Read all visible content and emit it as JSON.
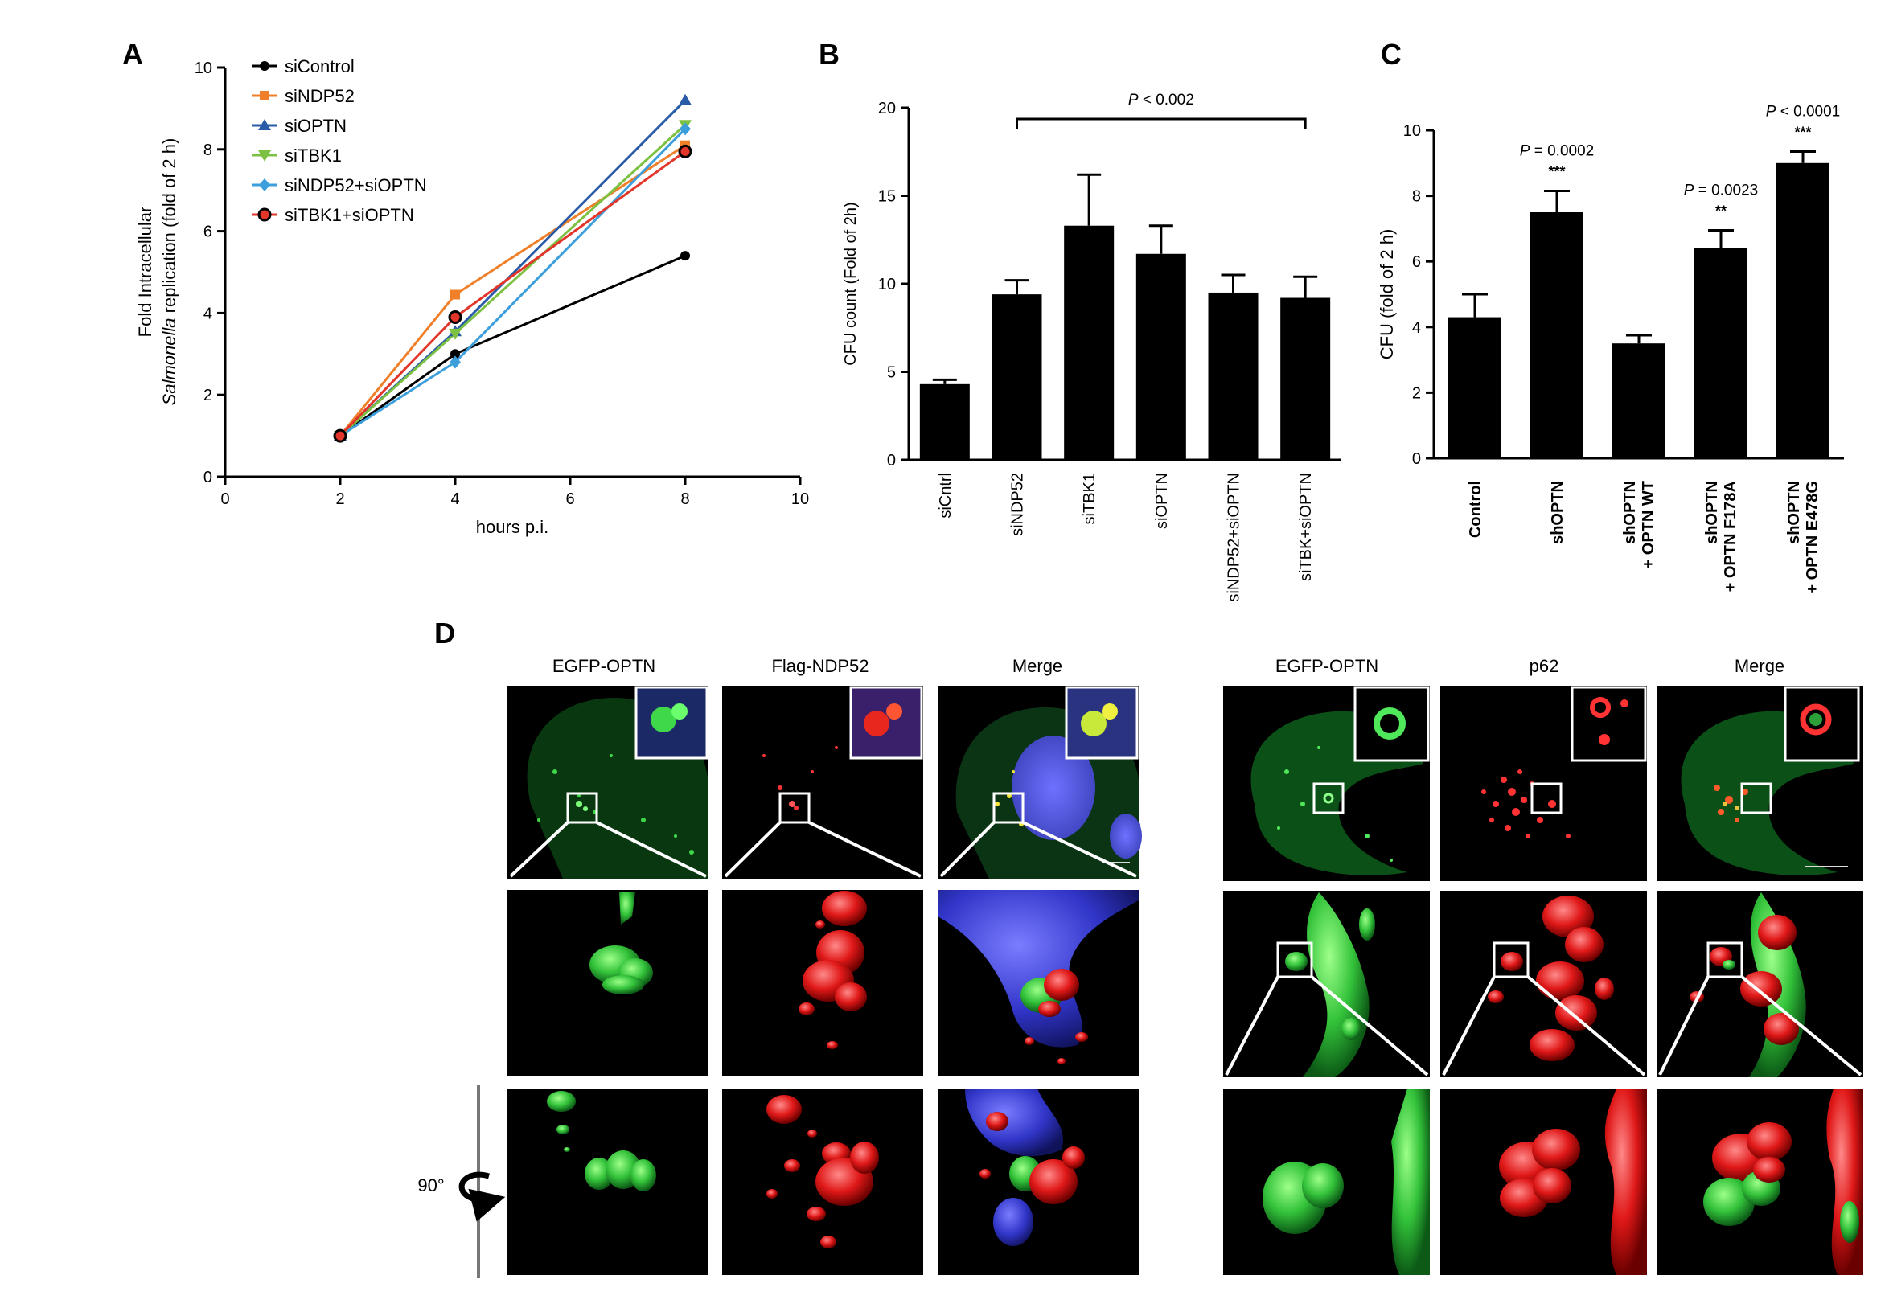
{
  "panel_labels": {
    "A": "A",
    "B": "B",
    "C": "C",
    "D": "D"
  },
  "chart_data": [
    {
      "id": "A",
      "type": "line",
      "xlabel": "hours p.i.",
      "ylabel_line1": "Fold Intracellular",
      "ylabel_line2_italic": "Salmonella",
      "ylabel_line2_rest": " replication (fold of 2 h)",
      "xlim": [
        0,
        10
      ],
      "ylim": [
        0,
        10
      ],
      "xticks": [
        "0",
        "2",
        "4",
        "6",
        "8",
        "10"
      ],
      "yticks": [
        "0",
        "2",
        "4",
        "6",
        "8",
        "10"
      ],
      "x": [
        2,
        4,
        8
      ],
      "legend_position": "top-left",
      "series": [
        {
          "name": "siControl",
          "values": [
            1.0,
            3.0,
            5.4
          ],
          "color": "#000000",
          "marker": "circle"
        },
        {
          "name": "siNDP52",
          "values": [
            1.0,
            4.45,
            8.1
          ],
          "color": "#f07f2a",
          "marker": "square"
        },
        {
          "name": "siOPTN",
          "values": [
            1.0,
            3.55,
            9.2
          ],
          "color": "#2a5ba8",
          "marker": "triangle-up"
        },
        {
          "name": "siTBK1",
          "values": [
            1.0,
            3.5,
            8.6
          ],
          "color": "#7cc142",
          "marker": "triangle-down"
        },
        {
          "name": "siNDP52+siOPTN",
          "values": [
            1.0,
            2.8,
            8.5
          ],
          "color": "#3c9fdb",
          "marker": "diamond"
        },
        {
          "name": "siTBK1+siOPTN",
          "values": [
            1.0,
            3.9,
            7.95
          ],
          "color": "#e2362a",
          "marker": "circle-ring"
        }
      ]
    },
    {
      "id": "B",
      "type": "bar",
      "ylabel": "CFU count (Fold of 2h)",
      "ylim": [
        0,
        20
      ],
      "yticks": [
        "0",
        "5",
        "10",
        "15",
        "20"
      ],
      "categories": [
        "siCntrl",
        "siNDP52",
        "siTBK1",
        "siOPTN",
        "siNDP52+siOPTN",
        "siTBK+siOPTN"
      ],
      "values": [
        4.3,
        9.4,
        13.3,
        11.7,
        9.5,
        9.2
      ],
      "errors": [
        0.25,
        0.8,
        2.9,
        1.6,
        1.0,
        1.2
      ],
      "annotation": {
        "italic": "P",
        "rest": " < 0.002",
        "from": 1,
        "to": 5
      }
    },
    {
      "id": "C",
      "type": "bar",
      "ylabel": "CFU  (fold of 2 h)",
      "ylim": [
        0,
        10
      ],
      "yticks": [
        "0",
        "2",
        "4",
        "6",
        "8",
        "10"
      ],
      "categories": [
        {
          "line1": "Control",
          "line2": ""
        },
        {
          "line1": "shOPTN",
          "line2": ""
        },
        {
          "line1": "shOPTN",
          "line2": "+ OPTN WT"
        },
        {
          "line1": "shOPTN",
          "line2": "+ OPTN F178A"
        },
        {
          "line1": "shOPTN",
          "line2": "+ OPTN E478G"
        }
      ],
      "values": [
        4.3,
        7.5,
        3.5,
        6.4,
        9.0
      ],
      "errors": [
        0.7,
        0.65,
        0.25,
        0.55,
        0.35
      ],
      "annotations": [
        {
          "index": 1,
          "p_italic": "P",
          "p_rest": " = 0.0002",
          "stars": "***"
        },
        {
          "index": 3,
          "p_italic": "P",
          "p_rest": " = 0.0023",
          "stars": "**"
        },
        {
          "index": 4,
          "p_italic": "P",
          "p_rest": " < 0.0001",
          "stars": "***"
        }
      ]
    }
  ],
  "panel_d": {
    "left_headers": [
      "EGFP-OPTN",
      "Flag-NDP52",
      "Merge"
    ],
    "right_headers": [
      "EGFP-OPTN",
      "p62",
      "Merge"
    ],
    "rotation_label": "90°"
  }
}
